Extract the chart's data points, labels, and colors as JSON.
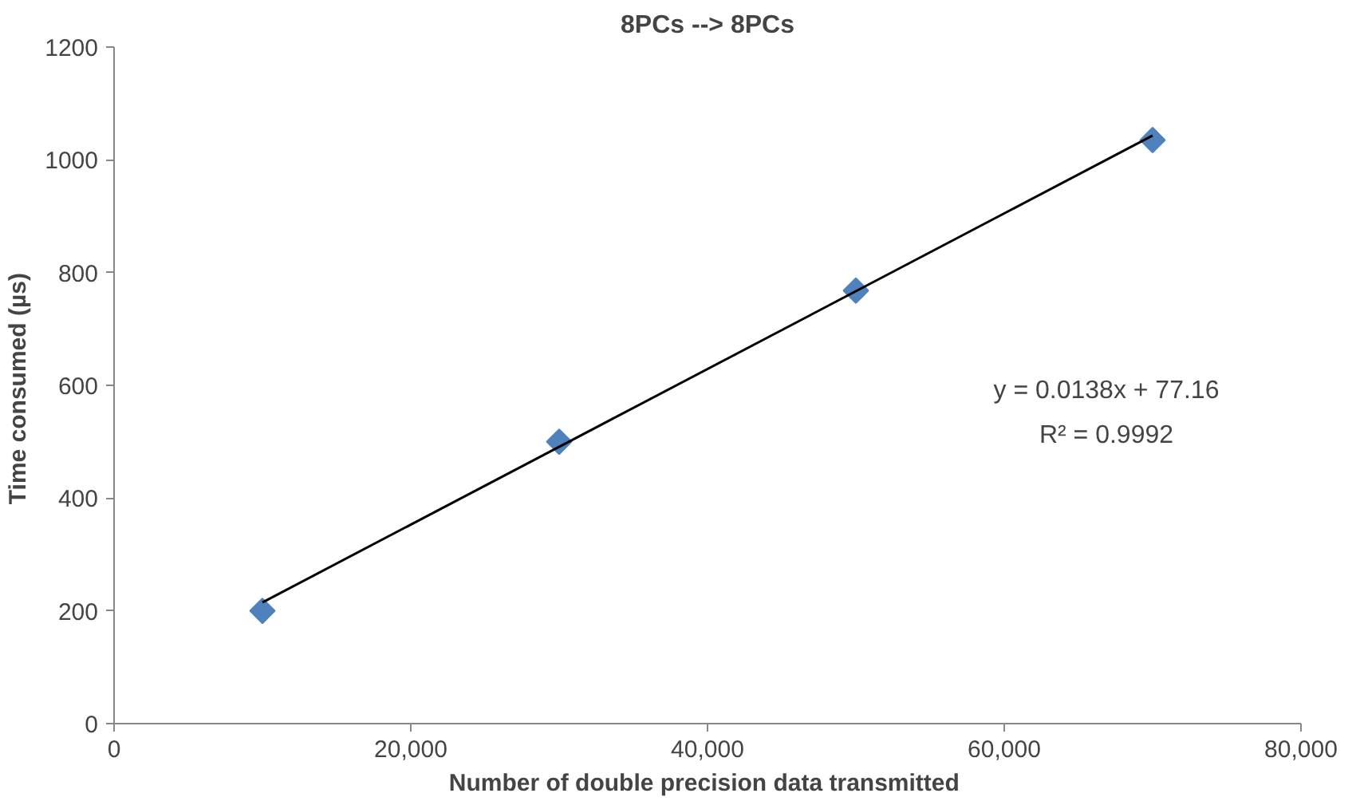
{
  "chart_data": {
    "type": "scatter",
    "title": "8PCs --> 8PCs",
    "xlabel": "Number of double precision  data transmitted",
    "ylabel": "Time consumed  (µs)",
    "x": [
      10000,
      30000,
      50000,
      70000
    ],
    "series": [
      {
        "color": "#4f81bd",
        "marker": "diamond",
        "values": [
          200,
          500,
          768,
          1035
        ]
      },
      {
        "type": "line",
        "color": "#000000",
        "x": [
          10000,
          70000
        ],
        "values": [
          215,
          1043
        ],
        "marker": "none",
        "line_style": "solid"
      }
    ],
    "annotations": [
      "y = 0.0138x + 77.16",
      "R² = 0.9992"
    ],
    "xlim": [
      0,
      80000
    ],
    "ylim": [
      0,
      1200
    ],
    "xticks": [
      {
        "value": 0,
        "label": "0"
      },
      {
        "value": 20000,
        "label": "20,000"
      },
      {
        "value": 40000,
        "label": "40,000"
      },
      {
        "value": 60000,
        "label": "60,000"
      },
      {
        "value": 80000,
        "label": "80,000"
      }
    ],
    "yticks": [
      0,
      200,
      400,
      600,
      800,
      1000,
      1200
    ],
    "grid": false
  }
}
